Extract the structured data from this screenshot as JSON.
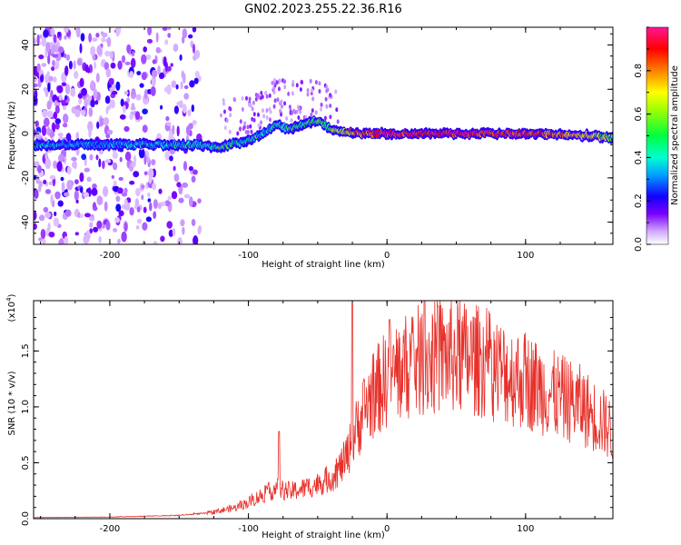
{
  "title": "GN02.2023.255.22.36.R16",
  "chart_data": [
    {
      "type": "heatmap",
      "xlabel": "Height of straight line (km)",
      "ylabel": "Frequency (Hz)",
      "xlim": [
        -255,
        163
      ],
      "ylim": [
        -50,
        48
      ],
      "x_ticks": [
        "-200",
        "-100",
        "0",
        "100"
      ],
      "x_tick_values": [
        -200,
        -100,
        0,
        100
      ],
      "y_ticks": [
        "-40",
        "-20",
        "0",
        "20",
        "40"
      ],
      "y_tick_values": [
        -40,
        -20,
        0,
        20,
        40
      ],
      "colorbar": {
        "label": "Normalized spectral amplitude",
        "range": [
          0,
          1
        ],
        "ticks": [
          "0.0",
          "0.2",
          "0.4",
          "0.6",
          "0.8"
        ],
        "tick_values": [
          0.0,
          0.2,
          0.4,
          0.6,
          0.8
        ]
      },
      "ridge": {
        "x": [
          -250,
          -230,
          -200,
          -170,
          -140,
          -120,
          -100,
          -90,
          -80,
          -70,
          -60,
          -50,
          -40,
          -30,
          -20,
          -10,
          0,
          50,
          100,
          150,
          163
        ],
        "frequency": [
          -5,
          -5,
          -5,
          -5,
          -5,
          -6,
          -3,
          0,
          4,
          2,
          4,
          6,
          2,
          1,
          0,
          0,
          0,
          0,
          0,
          -1,
          -2
        ],
        "amplitude": [
          0.35,
          0.32,
          0.3,
          0.4,
          0.45,
          0.5,
          0.4,
          0.45,
          0.45,
          0.5,
          0.5,
          0.5,
          0.6,
          0.75,
          0.85,
          0.9,
          0.95,
          0.95,
          0.9,
          0.7,
          0.6
        ]
      },
      "noise_region_x": [
        -255,
        -135
      ]
    },
    {
      "type": "line",
      "xlabel": "Height of straight line (km)",
      "ylabel": "SNR (10 * v/v)",
      "scale_note": "(x10",
      "scale_exp": "4",
      "scale_close": ")",
      "xlim": [
        -255,
        163
      ],
      "ylim": [
        0,
        1.95
      ],
      "x_ticks": [
        "-200",
        "-100",
        "0",
        "100"
      ],
      "x_tick_values": [
        -200,
        -100,
        0,
        100
      ],
      "y_ticks": [
        "0.0",
        "0.5",
        "1.0",
        "1.5"
      ],
      "y_tick_values": [
        0.0,
        0.5,
        1.0,
        1.5
      ],
      "series": [
        {
          "color": "#e8302a",
          "envelope_x": [
            -255,
            -200,
            -150,
            -130,
            -110,
            -100,
            -90,
            -80,
            -70,
            -60,
            -50,
            -40,
            -35,
            -30,
            -25,
            -20,
            -15,
            -10,
            0,
            10,
            20,
            30,
            40,
            50,
            60,
            70,
            80,
            90,
            100,
            110,
            120,
            130,
            140,
            150,
            160,
            163
          ],
          "envelope_y": [
            0.01,
            0.015,
            0.03,
            0.05,
            0.1,
            0.15,
            0.22,
            0.28,
            0.25,
            0.28,
            0.32,
            0.38,
            0.45,
            0.55,
            0.72,
            0.9,
            1.05,
            1.15,
            1.3,
            1.38,
            1.45,
            1.48,
            1.5,
            1.5,
            1.48,
            1.45,
            1.38,
            1.32,
            1.28,
            1.22,
            1.15,
            1.1,
            1.05,
            0.95,
            0.85,
            0.75
          ],
          "peaks_x": [
            -78,
            -25,
            2,
            27,
            37
          ],
          "peaks_y": [
            0.78,
            1.92,
            1.78,
            1.95,
            1.9
          ]
        }
      ]
    }
  ]
}
